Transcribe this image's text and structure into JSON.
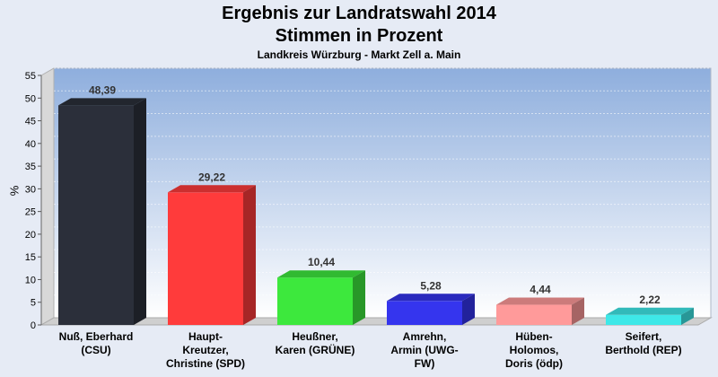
{
  "chart_data": {
    "type": "bar",
    "title": "Ergebnis zur Landratswahl 2014",
    "subtitle": "Stimmen in Prozent",
    "caption": "Landkreis Würzburg - Markt Zell a. Main",
    "ylabel": "%",
    "ylim": [
      0,
      55
    ],
    "yticks": [
      "0",
      "5",
      "10",
      "15",
      "20",
      "25",
      "30",
      "35",
      "40",
      "45",
      "50",
      "55"
    ],
    "categories": [
      [
        "Nuß, Eberhard",
        "(CSU)"
      ],
      [
        "Haupt-",
        "Kreutzer,",
        "Christine (SPD)"
      ],
      [
        "Heußner,",
        "Karen (GRÜNE)"
      ],
      [
        "Amrehn,",
        "Armin (UWG-",
        "FW)"
      ],
      [
        "Hüben-",
        "Holomos,",
        "Doris (ödp)"
      ],
      [
        "Seifert,",
        "Berthold (REP)"
      ]
    ],
    "values": [
      48.39,
      29.22,
      10.44,
      5.28,
      4.44,
      2.22
    ],
    "value_labels": [
      "48,39",
      "29,22",
      "10,44",
      "5,28",
      "4,44",
      "2,22"
    ],
    "colors": [
      "#2b2f3a",
      "#ff3b3b",
      "#3de83d",
      "#3535ee",
      "#ff9a9a",
      "#3ee8e8"
    ]
  }
}
